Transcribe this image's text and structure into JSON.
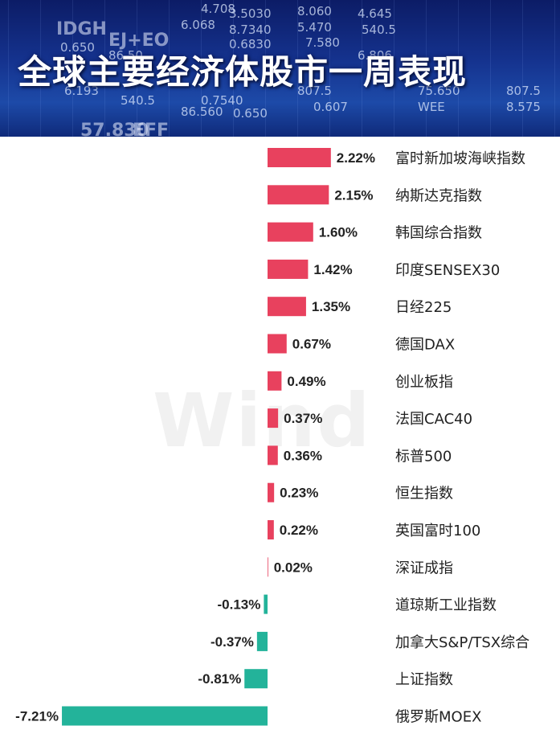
{
  "banner": {
    "title": "全球主要经济体股市一周表现",
    "ticker_strings": [
      "4.708",
      "6.068",
      "8.060",
      "5.470",
      "3.5030",
      "8.7340",
      "0.6830",
      "7.580",
      "4.645",
      "IDGH",
      "EJ+EO",
      "0.650",
      "86.50",
      "6.806",
      "6.193",
      "540.5",
      "0.7540",
      "807.5",
      "0.607",
      "0.650",
      "86.560",
      "540.5",
      "75.650",
      "807.5",
      "57.830",
      "EFF",
      "WEE",
      "8.575"
    ]
  },
  "watermark": "Wind",
  "colors": {
    "positive": "#e8415e",
    "negative": "#23b39a",
    "text": "#222222"
  },
  "chart_data": {
    "type": "bar",
    "orientation": "horizontal",
    "title": "全球主要经济体股市一周表现",
    "categories": [
      "富时新加坡海峡指数",
      "纳斯达克指数",
      "韩国综合指数",
      "印度SENSEX30",
      "日经225",
      "德国DAX",
      "创业板指",
      "法国CAC40",
      "标普500",
      "恒生指数",
      "英国富时100",
      "深证成指",
      "道琼斯工业指数",
      "加拿大S&P/TSX综合",
      "上证指数",
      "俄罗斯MOEX"
    ],
    "values": [
      2.22,
      2.15,
      1.6,
      1.42,
      1.35,
      0.67,
      0.49,
      0.37,
      0.36,
      0.23,
      0.22,
      0.02,
      -0.13,
      -0.37,
      -0.81,
      -7.21
    ],
    "value_labels": [
      "2.22%",
      "2.15%",
      "1.60%",
      "1.42%",
      "1.35%",
      "0.67%",
      "0.49%",
      "0.37%",
      "0.36%",
      "0.23%",
      "0.22%",
      "0.02%",
      "-0.13%",
      "-0.37%",
      "-0.81%",
      "-7.21%"
    ],
    "unit": "%"
  }
}
